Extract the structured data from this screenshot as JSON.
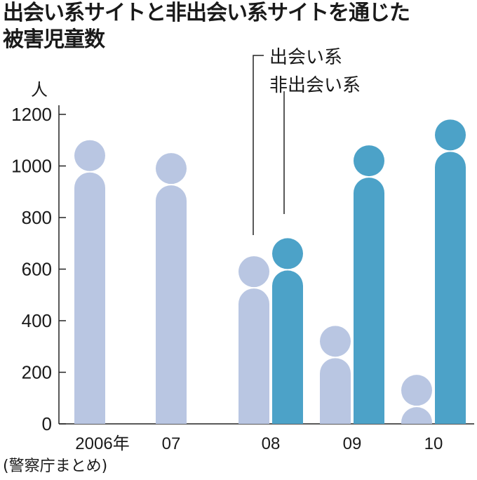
{
  "header": {
    "title_line1": "出会い系サイトと非出会い系サイトを通じた",
    "title_line2": "被害児童数"
  },
  "footer": {
    "source": "(警察庁まとめ)"
  },
  "chart_data": {
    "type": "bar",
    "title": "出会い系サイトと非出会い系サイトを通じた被害児童数",
    "ylabel": "人",
    "ylim": [
      0,
      1200
    ],
    "yticks": [
      "0",
      "200",
      "400",
      "600",
      "800",
      "1000",
      "1200"
    ],
    "categories": [
      "2006年",
      "07",
      "08",
      "09",
      "10"
    ],
    "series": [
      {
        "name": "出会い系",
        "color": "#b9c6e2",
        "values": [
          1100,
          1050,
          650,
          380,
          190
        ]
      },
      {
        "name": "非出会い系",
        "color": "#4ca2c8",
        "values": [
          null,
          null,
          720,
          1080,
          1180
        ]
      }
    ],
    "legend": [
      "出会い系",
      "非出会い系"
    ],
    "grid": false
  }
}
